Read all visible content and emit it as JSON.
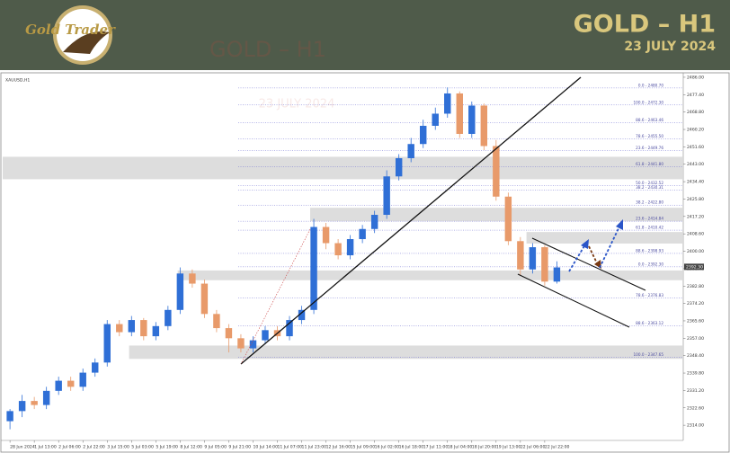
{
  "header": {
    "logo": "Gold Trader",
    "title": "GOLD – H1",
    "date": "23 JULY 2024"
  },
  "chart_data": {
    "type": "candlestick",
    "symbol": "XAUUSD,H1",
    "up_color": "#2f6fd6",
    "down_color": "#e89a6a",
    "open": [
      2316,
      2321,
      2326,
      2324,
      2331,
      2336,
      2333,
      2340,
      2345,
      2364,
      2360,
      2366,
      2358,
      2363,
      2371,
      2389,
      2384,
      2369,
      2362,
      2357,
      2352,
      2356,
      2361,
      2358,
      2366,
      2371,
      2412,
      2404,
      2398,
      2406,
      2411,
      2418,
      2437,
      2446,
      2453,
      2462,
      2468,
      2478,
      2458,
      2472,
      2452,
      2427,
      2405,
      2391,
      2402,
      2385
    ],
    "high": [
      2322,
      2329,
      2328,
      2333,
      2338,
      2338,
      2342,
      2347,
      2366,
      2366,
      2368,
      2367,
      2365,
      2373,
      2392,
      2391,
      2386,
      2371,
      2364,
      2359,
      2358,
      2363,
      2363,
      2368,
      2373,
      2416,
      2414,
      2406,
      2408,
      2413,
      2420,
      2440,
      2448,
      2456,
      2465,
      2471,
      2481,
      2479,
      2474,
      2473,
      2455,
      2429,
      2407,
      2404,
      2403,
      2395
    ],
    "low": [
      2312,
      2318,
      2322,
      2322,
      2329,
      2331,
      2331,
      2338,
      2343,
      2358,
      2358,
      2356,
      2356,
      2361,
      2369,
      2382,
      2367,
      2360,
      2350,
      2350,
      2350,
      2354,
      2356,
      2356,
      2364,
      2369,
      2401,
      2396,
      2396,
      2404,
      2409,
      2416,
      2435,
      2444,
      2451,
      2460,
      2466,
      2456,
      2456,
      2450,
      2425,
      2403,
      2388,
      2389,
      2383,
      2384
    ],
    "close": [
      2321,
      2326,
      2324,
      2331,
      2336,
      2333,
      2340,
      2345,
      2364,
      2360,
      2366,
      2358,
      2363,
      2371,
      2389,
      2384,
      2369,
      2362,
      2357,
      2352,
      2356,
      2361,
      2358,
      2366,
      2371,
      2412,
      2404,
      2398,
      2406,
      2411,
      2418,
      2437,
      2446,
      2453,
      2462,
      2468,
      2478,
      2458,
      2472,
      2452,
      2427,
      2405,
      2391,
      2402,
      2385,
      2392
    ],
    "xlim": [
      -0.6,
      55.4
    ],
    "xticks": [
      {
        "value": 0,
        "label": "28 Jun 2024"
      },
      {
        "value": 2,
        "label": "1 Jul 13:00"
      },
      {
        "value": 4,
        "label": "2 Jul 06:00"
      },
      {
        "value": 6,
        "label": "2 Jul 22:00"
      },
      {
        "value": 8,
        "label": "3 Jul 15:00"
      },
      {
        "value": 10,
        "label": "5 Jul 03:00"
      },
      {
        "value": 12,
        "label": "5 Jul 19:00"
      },
      {
        "value": 14,
        "label": "8 Jul 12:00"
      },
      {
        "value": 16,
        "label": "9 Jul 05:00"
      },
      {
        "value": 18,
        "label": "9 Jul 21:00"
      },
      {
        "value": 20,
        "label": "10 Jul 14:00"
      },
      {
        "value": 22,
        "label": "11 Jul 07:00"
      },
      {
        "value": 24,
        "label": "11 Jul 23:00"
      },
      {
        "value": 26,
        "label": "12 Jul 16:00"
      },
      {
        "value": 28,
        "label": "15 Jul 09:00"
      },
      {
        "value": 30,
        "label": "16 Jul 02:00"
      },
      {
        "value": 32,
        "label": "16 Jul 18:00"
      },
      {
        "value": 34,
        "label": "17 Jul 11:00"
      },
      {
        "value": 36,
        "label": "18 Jul 04:00"
      },
      {
        "value": 38,
        "label": "18 Jul 20:00"
      },
      {
        "value": 40,
        "label": "19 Jul 13:00"
      },
      {
        "value": 42,
        "label": "22 Jul 06:00"
      },
      {
        "value": 44,
        "label": "22 Jul 22:00"
      }
    ],
    "ylim": [
      2306.5,
      2488.2
    ],
    "yticks": [
      {
        "value": 2486,
        "label": "2486.00"
      },
      {
        "value": 2477.4,
        "label": "2477.40"
      },
      {
        "value": 2468.8,
        "label": "2468.80"
      },
      {
        "value": 2460.2,
        "label": "2460.20"
      },
      {
        "value": 2451.6,
        "label": "2451.60"
      },
      {
        "value": 2443,
        "label": "2443.00"
      },
      {
        "value": 2434.4,
        "label": "2434.40"
      },
      {
        "value": 2425.8,
        "label": "2425.80"
      },
      {
        "value": 2417.2,
        "label": "2417.20"
      },
      {
        "value": 2408.6,
        "label": "2408.60"
      },
      {
        "value": 2400,
        "label": "2400.00"
      },
      {
        "value": 2391.4,
        "label": "2391.40"
      },
      {
        "value": 2382.8,
        "label": "2382.80"
      },
      {
        "value": 2374.2,
        "label": "2374.20"
      },
      {
        "value": 2365.6,
        "label": "2365.60"
      },
      {
        "value": 2357,
        "label": "2357.00"
      },
      {
        "value": 2348.4,
        "label": "2348.40"
      },
      {
        "value": 2339.8,
        "label": "2339.80"
      },
      {
        "value": 2331.2,
        "label": "2331.20"
      },
      {
        "value": 2322.6,
        "label": "2322.60"
      },
      {
        "value": 2314,
        "label": "2314.00"
      }
    ],
    "current_price": {
      "value": 2392.3,
      "label": "2392.30"
    },
    "fib_levels": [
      {
        "value": 2480.7,
        "label": "0.0 - 2480.70"
      },
      {
        "value": 2472.3,
        "label": "100.0 - 2472.30"
      },
      {
        "value": 2463.46,
        "label": "88.6 - 2463.46"
      },
      {
        "value": 2455.5,
        "label": "78.6 - 2455.50"
      },
      {
        "value": 2449.76,
        "label": "23.6 - 2449.76"
      },
      {
        "value": 2441.8,
        "label": "61.8 - 2441.80"
      },
      {
        "value": 2432.52,
        "label": "50.0 - 2432.52"
      },
      {
        "value": 2430.31,
        "label": "38.2 - 2430.31"
      },
      {
        "value": 2422.8,
        "label": "38.2 - 2422.80"
      },
      {
        "value": 2414.84,
        "label": "23.6 - 2414.84"
      },
      {
        "value": 2410.42,
        "label": "61.8 - 2410.42"
      },
      {
        "value": 2398.93,
        "label": "88.6 - 2398.93"
      },
      {
        "value": 2392.3,
        "label": "0.0 - 2392.30"
      },
      {
        "value": 2376.83,
        "label": "78.6 - 2376.83"
      },
      {
        "value": 2363.12,
        "label": "88.6 - 2363.12"
      },
      {
        "value": 2347.65,
        "label": "100.0 - 2347.65"
      }
    ],
    "zones": [
      {
        "from": -0.6,
        "low": 2435.6,
        "high": 2446.7
      },
      {
        "from": 24.7,
        "low": 2414.8,
        "high": 2421.5
      },
      {
        "from": 42.5,
        "low": 2403.8,
        "high": 2409.5
      },
      {
        "from": 13.8,
        "low": 2385.7,
        "high": 2390.5
      },
      {
        "from": 9.8,
        "low": 2346.8,
        "high": 2353.4
      }
    ]
  }
}
